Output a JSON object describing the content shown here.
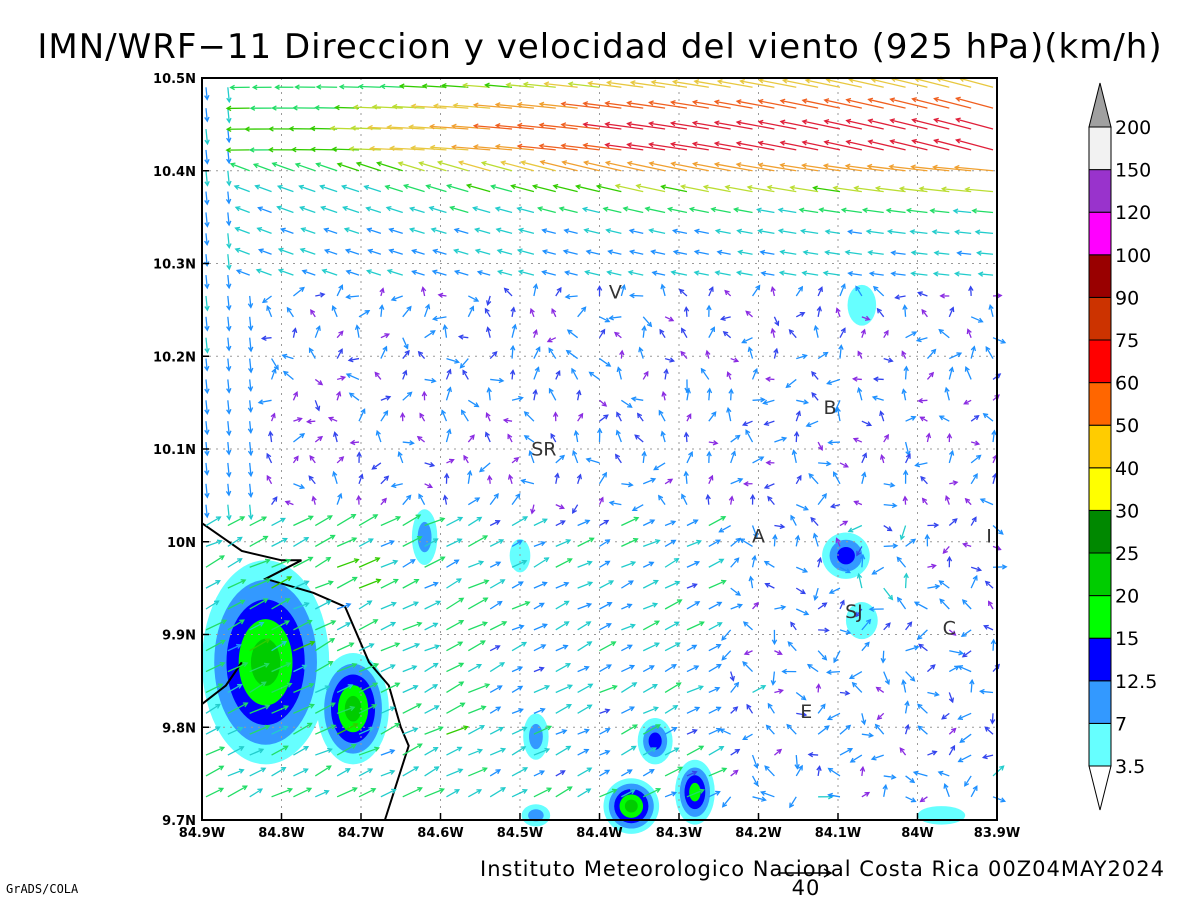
{
  "title": "IMN/WRF−11 Direccion y velocidad del viento (925 hPa)(km/h)",
  "footer": "Instituto Meteorologico Nacional Costa Rica 00Z04MAY2024",
  "software": "GrADS/COLA",
  "reference_vector": {
    "label": "40"
  },
  "chart_data": {
    "type": "heatmap",
    "xlim": [
      -84.9,
      -83.9
    ],
    "ylim": [
      9.7,
      10.5
    ],
    "grid": true,
    "x_ticks": [
      {
        "value": -84.9,
        "label": "84.9W"
      },
      {
        "value": -84.8,
        "label": "84.8W"
      },
      {
        "value": -84.7,
        "label": "84.7W"
      },
      {
        "value": -84.6,
        "label": "84.6W"
      },
      {
        "value": -84.5,
        "label": "84.5W"
      },
      {
        "value": -84.4,
        "label": "84.4W"
      },
      {
        "value": -84.3,
        "label": "84.3W"
      },
      {
        "value": -84.2,
        "label": "84.2W"
      },
      {
        "value": -84.1,
        "label": "84.1W"
      },
      {
        "value": -84.0,
        "label": "84W"
      },
      {
        "value": -83.9,
        "label": "83.9W"
      }
    ],
    "y_ticks": [
      {
        "value": 10.5,
        "label": "10.5N"
      },
      {
        "value": 10.4,
        "label": "10.4N"
      },
      {
        "value": 10.3,
        "label": "10.3N"
      },
      {
        "value": 10.2,
        "label": "10.2N"
      },
      {
        "value": 10.1,
        "label": "10.1N"
      },
      {
        "value": 10.0,
        "label": "10N"
      },
      {
        "value": 9.9,
        "label": "9.9N"
      },
      {
        "value": 9.8,
        "label": "9.8N"
      },
      {
        "value": 9.7,
        "label": "9.7N"
      }
    ],
    "colorbar": [
      {
        "label": "3.5",
        "color": "#66ffff"
      },
      {
        "label": "7",
        "color": "#3399ff"
      },
      {
        "label": "12.5",
        "color": "#0000ff"
      },
      {
        "label": "15",
        "color": "#00ff00"
      },
      {
        "label": "20",
        "color": "#00cc00"
      },
      {
        "label": "25",
        "color": "#008800"
      },
      {
        "label": "30",
        "color": "#ffff00"
      },
      {
        "label": "40",
        "color": "#ffcc00"
      },
      {
        "label": "50",
        "color": "#ff6600"
      },
      {
        "label": "60",
        "color": "#ff0000"
      },
      {
        "label": "75",
        "color": "#cc3300"
      },
      {
        "label": "90",
        "color": "#990000"
      },
      {
        "label": "100",
        "color": "#ff00ff"
      },
      {
        "label": "120",
        "color": "#9933cc"
      },
      {
        "label": "150",
        "color": "#f2f2f2"
      },
      {
        "label": "200",
        "color": "#a0a0a0"
      }
    ],
    "speed_blobs": [
      {
        "lon": -84.82,
        "lat": 9.87,
        "rlon": 0.08,
        "rlat": 0.11,
        "level": 4
      },
      {
        "lon": -84.71,
        "lat": 9.82,
        "rlon": 0.045,
        "rlat": 0.06,
        "level": 4
      },
      {
        "lon": -84.36,
        "lat": 9.715,
        "rlon": 0.035,
        "rlat": 0.03,
        "level": 4
      },
      {
        "lon": -84.28,
        "lat": 9.73,
        "rlon": 0.025,
        "rlat": 0.035,
        "level": 3
      },
      {
        "lon": -84.33,
        "lat": 9.785,
        "rlon": 0.022,
        "rlat": 0.025,
        "level": 2
      },
      {
        "lon": -84.09,
        "lat": 9.985,
        "rlon": 0.03,
        "rlat": 0.025,
        "level": 2
      },
      {
        "lon": -84.48,
        "lat": 9.79,
        "rlon": 0.016,
        "rlat": 0.025,
        "level": 1
      },
      {
        "lon": -84.62,
        "lat": 10.005,
        "rlon": 0.016,
        "rlat": 0.03,
        "level": 1
      },
      {
        "lon": -84.5,
        "lat": 9.985,
        "rlon": 0.013,
        "rlat": 0.018,
        "level": 0
      },
      {
        "lon": -84.07,
        "lat": 9.915,
        "rlon": 0.02,
        "rlat": 0.02,
        "level": 0
      },
      {
        "lon": -84.07,
        "lat": 10.255,
        "rlon": 0.018,
        "rlat": 0.022,
        "level": 0
      },
      {
        "lon": -84.48,
        "lat": 9.705,
        "rlon": 0.018,
        "rlat": 0.012,
        "level": 1
      },
      {
        "lon": -83.97,
        "lat": 9.705,
        "rlon": 0.03,
        "rlat": 0.01,
        "level": 0
      }
    ],
    "coastline": [
      [
        -84.9,
        10.02
      ],
      [
        -84.85,
        9.99
      ],
      [
        -84.8,
        9.98
      ],
      [
        -84.775,
        9.98
      ],
      [
        -84.82,
        9.96
      ],
      [
        -84.76,
        9.945
      ],
      [
        -84.72,
        9.93
      ],
      [
        -84.69,
        9.87
      ],
      [
        -84.665,
        9.845
      ],
      [
        -84.65,
        9.8
      ],
      [
        -84.64,
        9.78
      ],
      [
        -84.67,
        9.7
      ]
    ],
    "coastline_peninsula": [
      [
        -84.9,
        9.825
      ],
      [
        -84.87,
        9.845
      ],
      [
        -84.85,
        9.87
      ]
    ],
    "place_labels": [
      {
        "text": "V",
        "lon": -84.38,
        "lat": 10.262
      },
      {
        "text": "SR",
        "lon": -84.47,
        "lat": 10.093
      },
      {
        "text": "B",
        "lon": -84.11,
        "lat": 10.138
      },
      {
        "text": "A",
        "lon": -84.2,
        "lat": 9.999
      },
      {
        "text": "I",
        "lon": -83.91,
        "lat": 9.999
      },
      {
        "text": "SJ",
        "lon": -84.08,
        "lat": 9.918
      },
      {
        "text": "C",
        "lon": -83.96,
        "lat": 9.9
      },
      {
        "text": "E",
        "lon": -84.14,
        "lat": 9.81
      }
    ],
    "wind_jet": {
      "description_units": "km/h",
      "axis_lat": 10.44,
      "max_speed": 75
    }
  }
}
